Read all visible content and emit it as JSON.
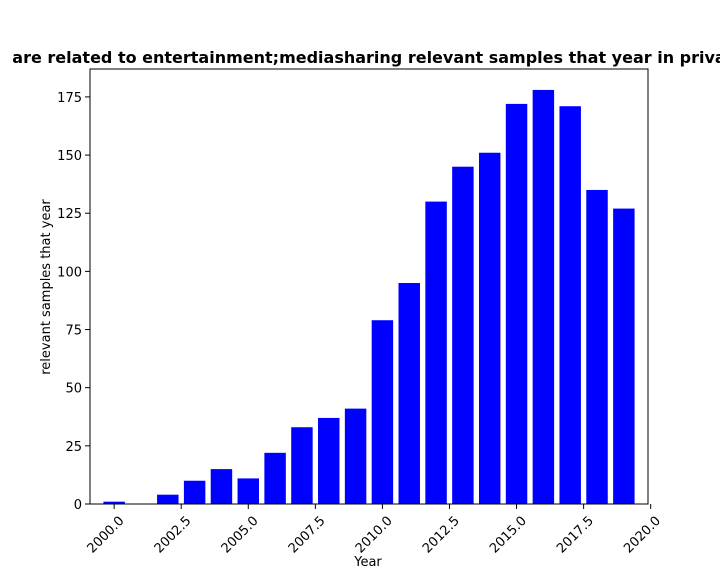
{
  "chart_data": {
    "type": "bar",
    "title": "are related to entertainment;mediasharing relevant samples that year in priva",
    "xlabel": "Year",
    "ylabel": "relevant samples that year",
    "x": [
      2000,
      2002,
      2003,
      2004,
      2005,
      2006,
      2007,
      2008,
      2009,
      2010,
      2011,
      2012,
      2013,
      2014,
      2015,
      2016,
      2017,
      2018,
      2019
    ],
    "values": [
      1,
      4,
      10,
      15,
      11,
      22,
      33,
      37,
      41,
      79,
      95,
      130,
      145,
      151,
      172,
      178,
      171,
      135,
      127
    ],
    "bar_color": "#0000ff",
    "xlim": [
      1999.1,
      2019.9
    ],
    "ylim": [
      0,
      187
    ],
    "xticks": [
      2000.0,
      2002.5,
      2005.0,
      2007.5,
      2010.0,
      2012.5,
      2015.0,
      2017.5,
      2020.0
    ],
    "xtick_labels": [
      "2000.0",
      "2002.5",
      "2005.0",
      "2007.5",
      "2010.0",
      "2012.5",
      "2015.0",
      "2017.5",
      "2020.0"
    ],
    "yticks": [
      0,
      25,
      50,
      75,
      100,
      125,
      150,
      175
    ],
    "ytick_labels": [
      "0",
      "25",
      "50",
      "75",
      "100",
      "125",
      "150",
      "175"
    ],
    "grid": false,
    "legend": "none"
  }
}
